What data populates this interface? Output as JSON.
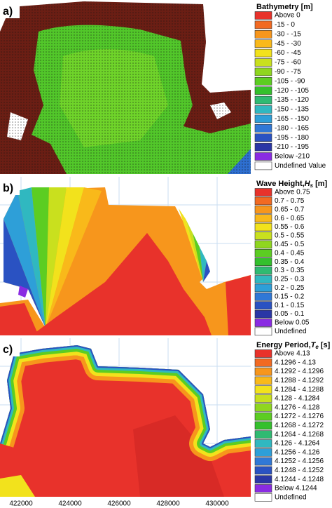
{
  "panels": [
    {
      "label": "a)",
      "legend": {
        "title": {
          "text": "Bathymetry [m]"
        },
        "entries": [
          "Above 0",
          "-15 - 0",
          "-30 - -15",
          "-45 - -30",
          "-60 - -45",
          "-75 - -60",
          "-90 - -75",
          "-105 - -90",
          "-120 - -105",
          "-135 - -120",
          "-150 - -135",
          "-165 - -150",
          "-180 - -165",
          "-195 - -180",
          "-210 - -195",
          "Below -210",
          "Undefined Value"
        ]
      }
    },
    {
      "label": "b)",
      "legend": {
        "title": {
          "text": "Wave Height,",
          "symbol": "H",
          "subscript": "s",
          "unit": "[m]"
        },
        "entries": [
          "Above 0.75",
          "0.7 - 0.75",
          "0.65 - 0.7",
          "0.6 - 0.65",
          "0.55 - 0.6",
          "0.5 - 0.55",
          "0.45 - 0.5",
          "0.4 - 0.45",
          "0.35 - 0.4",
          "0.3 - 0.35",
          "0.25 - 0.3",
          "0.2 - 0.25",
          "0.15 - 0.2",
          "0.1 - 0.15",
          "0.05 - 0.1",
          "Below 0.05",
          "Undefined"
        ]
      }
    },
    {
      "label": "c)",
      "legend": {
        "title": {
          "text": "Energy Period,",
          "symbol": "T",
          "subscript": "e",
          "unit": "[s]"
        },
        "entries": [
          "Above 4.13",
          "4.1296 - 4.13",
          "4.1292 - 4.1296",
          "4.1288 - 4.1292",
          "4.1284 - 4.1288",
          "4.128 - 4.1284",
          "4.1276 - 4.128",
          "4.1272 - 4.1276",
          "4.1268 - 4.1272",
          "4.1264 - 4.1268",
          "4.126 - 4.1264",
          "4.1256 - 4.126",
          "4.1252 - 4.1256",
          "4.1248 - 4.1252",
          "4.1244 - 4.1248",
          "Below 4.1244",
          "Undefined"
        ]
      },
      "x_axis_labels": [
        "422000",
        "424000",
        "426000",
        "428000",
        "430000"
      ]
    }
  ],
  "palette": [
    "#e8322b",
    "#f26a22",
    "#f7961c",
    "#f9b91a",
    "#f2e21c",
    "#c9e01e",
    "#8fd61f",
    "#5ccd22",
    "#34c02c",
    "#2fba72",
    "#30b8c0",
    "#2e9fd8",
    "#3078d6",
    "#2a52c2",
    "#2a36a6",
    "#8a2be2",
    "#ffffff"
  ]
}
